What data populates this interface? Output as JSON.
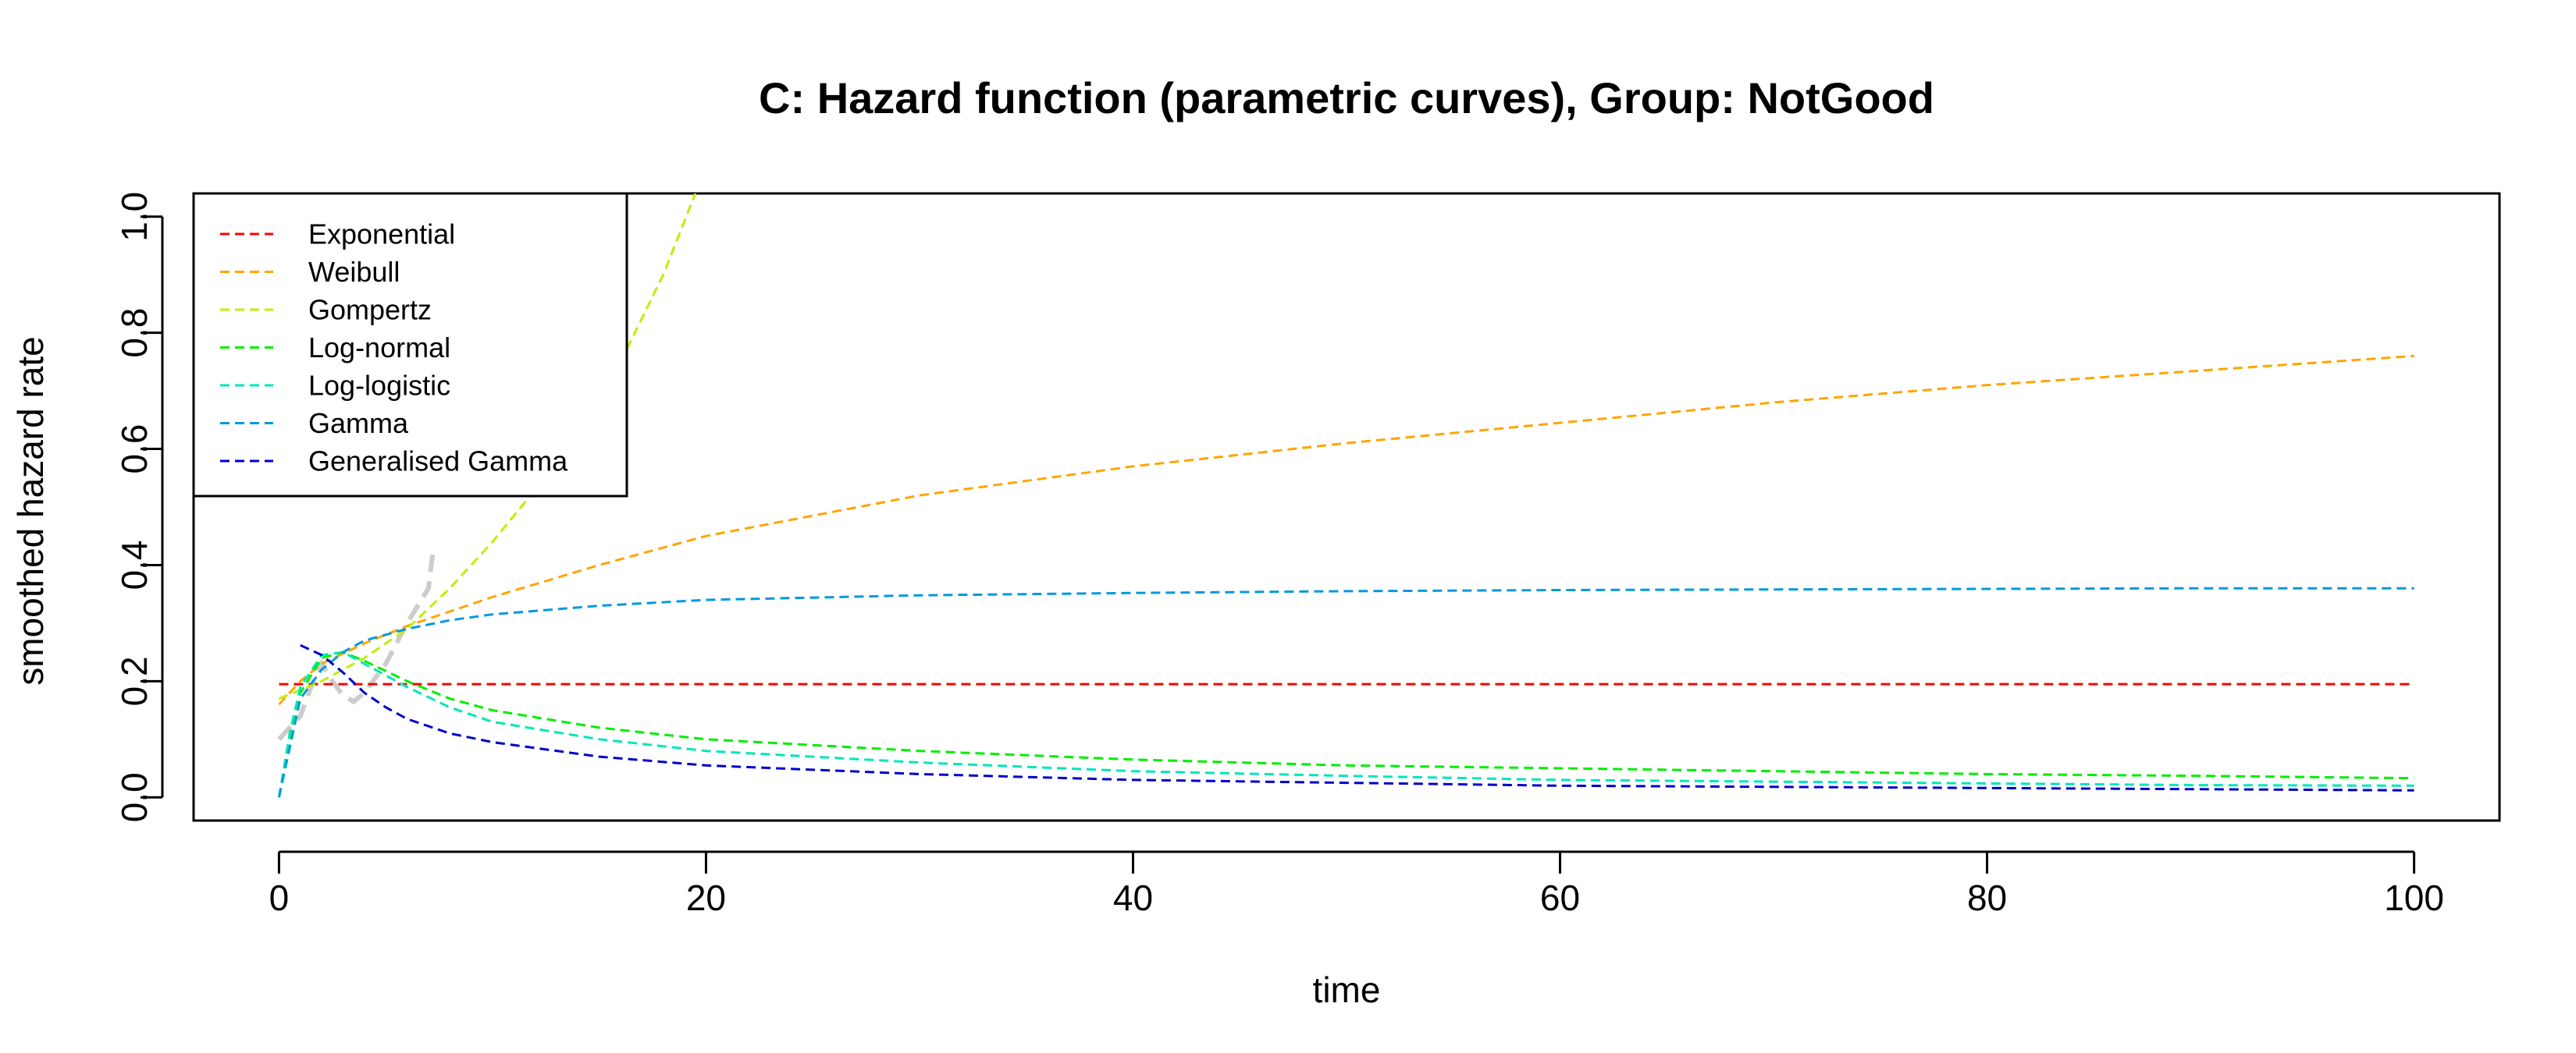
{
  "chart_data": {
    "type": "line",
    "title": "C: Hazard function (parametric curves), Group: NotGood",
    "xlabel": "time",
    "ylabel": "smoothed hazard rate",
    "xlim": [
      -4,
      104
    ],
    "ylim": [
      -0.04,
      1.04
    ],
    "xticks": [
      0,
      20,
      40,
      60,
      80,
      100
    ],
    "yticks": [
      0.0,
      0.2,
      0.4,
      0.6,
      0.8,
      1.0
    ],
    "xtick_labels": [
      "0",
      "20",
      "40",
      "60",
      "80",
      "100"
    ],
    "ytick_labels": [
      "0.0",
      "0.2",
      "0.4",
      "0.6",
      "0.8",
      "1.0"
    ],
    "grid": false,
    "legend_position": "top-left",
    "series": [
      {
        "name": "Exponential",
        "color": "#FF0000",
        "points": [
          [
            0,
            0.195
          ],
          [
            100,
            0.195
          ]
        ]
      },
      {
        "name": "Weibull",
        "color": "#FFA500",
        "points": [
          [
            0,
            0.16
          ],
          [
            1,
            0.2
          ],
          [
            2,
            0.23
          ],
          [
            4,
            0.265
          ],
          [
            6,
            0.295
          ],
          [
            8,
            0.32
          ],
          [
            10,
            0.345
          ],
          [
            15,
            0.4
          ],
          [
            20,
            0.45
          ],
          [
            30,
            0.52
          ],
          [
            40,
            0.57
          ],
          [
            50,
            0.61
          ],
          [
            60,
            0.645
          ],
          [
            70,
            0.68
          ],
          [
            80,
            0.71
          ],
          [
            90,
            0.735
          ],
          [
            100,
            0.76
          ]
        ]
      },
      {
        "name": "Gompertz",
        "color": "#BFEF00",
        "points": [
          [
            0,
            0.17
          ],
          [
            2,
            0.2
          ],
          [
            4,
            0.24
          ],
          [
            6,
            0.29
          ],
          [
            8,
            0.36
          ],
          [
            10,
            0.44
          ],
          [
            12,
            0.53
          ],
          [
            14,
            0.63
          ],
          [
            16,
            0.75
          ],
          [
            18,
            0.9
          ],
          [
            19.5,
            1.04
          ]
        ]
      },
      {
        "name": "Log-normal",
        "color": "#00EE00",
        "points": [
          [
            0,
            0.0
          ],
          [
            0.5,
            0.1
          ],
          [
            1,
            0.18
          ],
          [
            2,
            0.24
          ],
          [
            3,
            0.25
          ],
          [
            4,
            0.235
          ],
          [
            6,
            0.2
          ],
          [
            8,
            0.17
          ],
          [
            10,
            0.15
          ],
          [
            15,
            0.12
          ],
          [
            20,
            0.1
          ],
          [
            30,
            0.08
          ],
          [
            40,
            0.065
          ],
          [
            50,
            0.055
          ],
          [
            60,
            0.05
          ],
          [
            70,
            0.045
          ],
          [
            80,
            0.04
          ],
          [
            90,
            0.037
          ],
          [
            100,
            0.033
          ]
        ]
      },
      {
        "name": "Log-logistic",
        "color": "#00E6B8",
        "points": [
          [
            0,
            0.0
          ],
          [
            0.5,
            0.11
          ],
          [
            1,
            0.19
          ],
          [
            2,
            0.245
          ],
          [
            3,
            0.25
          ],
          [
            4,
            0.23
          ],
          [
            6,
            0.19
          ],
          [
            8,
            0.155
          ],
          [
            10,
            0.13
          ],
          [
            15,
            0.1
          ],
          [
            20,
            0.08
          ],
          [
            30,
            0.06
          ],
          [
            40,
            0.045
          ],
          [
            50,
            0.037
          ],
          [
            60,
            0.03
          ],
          [
            70,
            0.027
          ],
          [
            80,
            0.024
          ],
          [
            90,
            0.021
          ],
          [
            100,
            0.02
          ]
        ]
      },
      {
        "name": "Gamma",
        "color": "#0099DD",
        "points": [
          [
            0,
            0.0
          ],
          [
            1,
            0.17
          ],
          [
            2,
            0.22
          ],
          [
            3,
            0.25
          ],
          [
            4,
            0.27
          ],
          [
            6,
            0.29
          ],
          [
            8,
            0.305
          ],
          [
            10,
            0.315
          ],
          [
            15,
            0.33
          ],
          [
            20,
            0.34
          ],
          [
            30,
            0.348
          ],
          [
            40,
            0.352
          ],
          [
            50,
            0.355
          ],
          [
            60,
            0.357
          ],
          [
            70,
            0.358
          ],
          [
            80,
            0.359
          ],
          [
            90,
            0.36
          ],
          [
            100,
            0.36
          ]
        ]
      },
      {
        "name": "Generalised Gamma",
        "color": "#0000CC",
        "points": [
          [
            1,
            0.262
          ],
          [
            2,
            0.245
          ],
          [
            3,
            0.215
          ],
          [
            4,
            0.18
          ],
          [
            5,
            0.155
          ],
          [
            6,
            0.135
          ],
          [
            8,
            0.11
          ],
          [
            10,
            0.095
          ],
          [
            15,
            0.07
          ],
          [
            20,
            0.055
          ],
          [
            30,
            0.04
          ],
          [
            40,
            0.03
          ],
          [
            50,
            0.025
          ],
          [
            60,
            0.02
          ],
          [
            70,
            0.018
          ],
          [
            80,
            0.016
          ],
          [
            90,
            0.014
          ],
          [
            100,
            0.012
          ]
        ]
      }
    ],
    "empirical_series": {
      "color": "#CCCCCC",
      "points": [
        [
          0,
          0.1
        ],
        [
          1,
          0.14
        ],
        [
          1.5,
          0.19
        ],
        [
          2,
          0.23
        ],
        [
          2.5,
          0.2
        ],
        [
          3,
          0.175
        ],
        [
          3.5,
          0.165
        ],
        [
          4,
          0.18
        ],
        [
          5,
          0.23
        ],
        [
          6,
          0.3
        ],
        [
          7,
          0.36
        ],
        [
          7.2,
          0.42
        ]
      ]
    }
  }
}
